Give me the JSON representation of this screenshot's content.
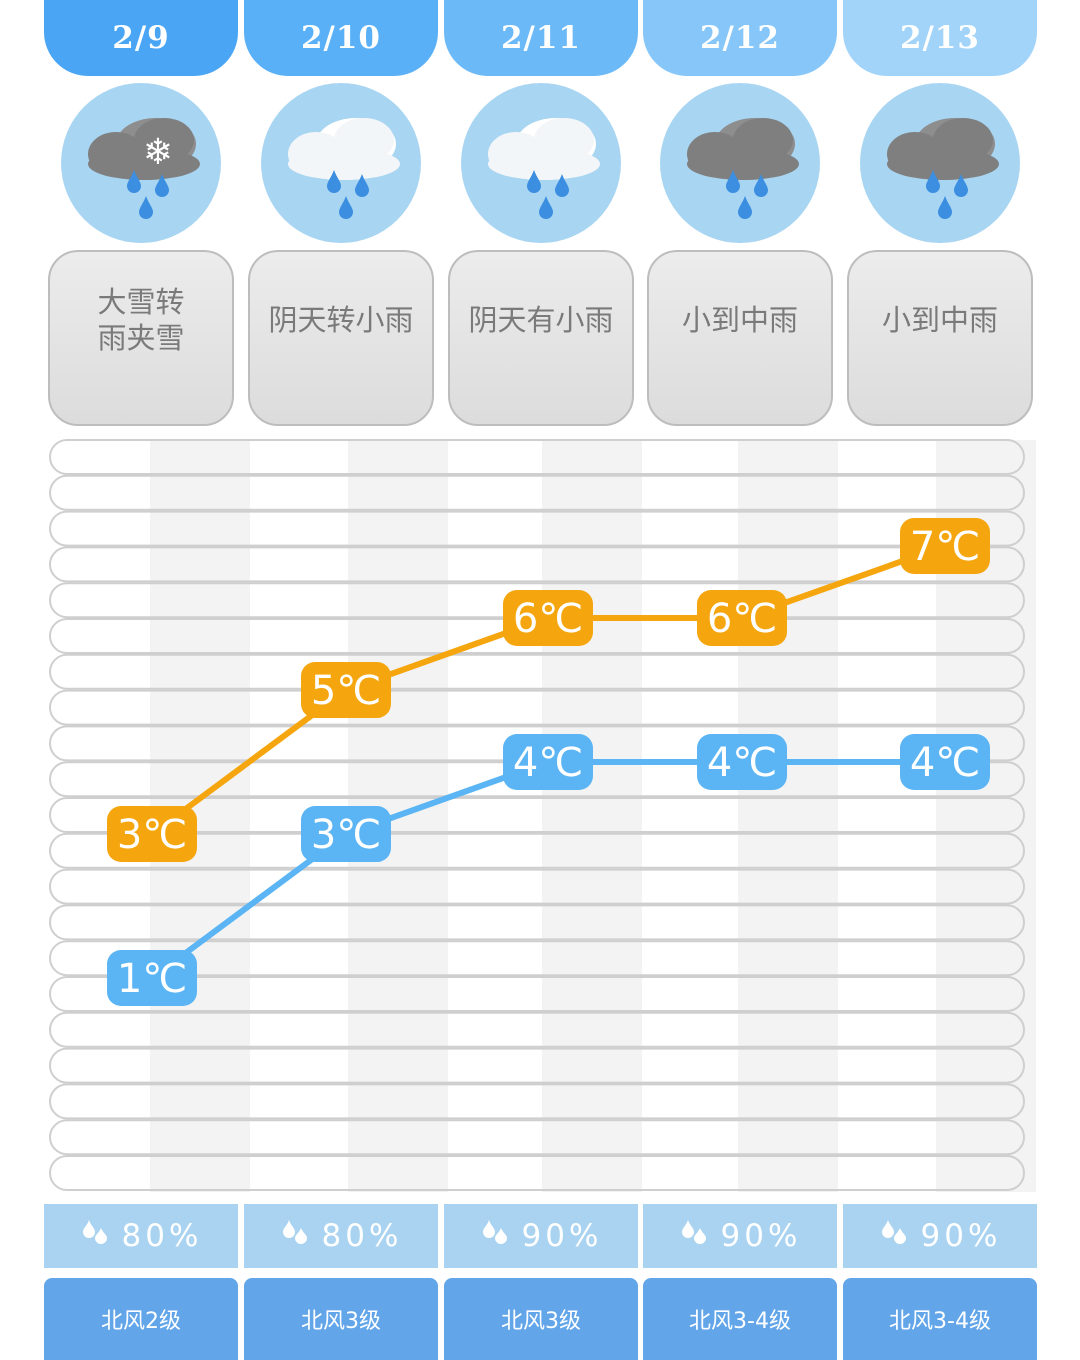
{
  "days": [
    {
      "date": "2/9",
      "condition": [
        "大雪转",
        "雨夹雪"
      ],
      "icon": "snow-rain-cloud-icon",
      "humidity": "80%",
      "wind": "北风2级",
      "date_color": "#4aa5f5"
    },
    {
      "date": "2/10",
      "condition": [
        "阴天转小雨"
      ],
      "icon": "white-cloud-rain-icon",
      "humidity": "80%",
      "wind": "北风3级",
      "date_color": "#5ab0f6"
    },
    {
      "date": "2/11",
      "condition": [
        "阴天有小雨"
      ],
      "icon": "white-cloud-rain-icon",
      "humidity": "90%",
      "wind": "北风3级",
      "date_color": "#6cb9f7"
    },
    {
      "date": "2/12",
      "condition": [
        "小到中雨"
      ],
      "icon": "dark-cloud-rain-icon",
      "humidity": "90%",
      "wind": "北风3-4级",
      "date_color": "#86c6f8"
    },
    {
      "date": "2/13",
      "condition": [
        "小到中雨"
      ],
      "icon": "dark-cloud-rain-icon",
      "humidity": "90%",
      "wind": "北风3-4级",
      "date_color": "#a2d4f9"
    }
  ],
  "chart_data": {
    "type": "line",
    "categories": [
      "2/9",
      "2/10",
      "2/11",
      "2/12",
      "2/13"
    ],
    "series": [
      {
        "values": [
          3,
          5,
          6,
          6,
          7
        ],
        "labels": [
          "3℃",
          "5℃",
          "6℃",
          "6℃",
          "7℃"
        ],
        "color": "#f5a60f"
      },
      {
        "values": [
          1,
          3,
          4,
          4,
          4
        ],
        "labels": [
          "1℃",
          "3℃",
          "4℃",
          "4℃",
          "4℃"
        ],
        "color": "#5bb5f5"
      }
    ],
    "unit": "℃"
  },
  "colors": {
    "date": "#4aa5f5",
    "icon_bg": "#a8d5f2",
    "condition_bg": "#e4e4e4",
    "humidity_bg": "#a9d3f0",
    "wind_bg": "#62a6e9",
    "high": "#f5a60f",
    "low": "#5bb5f5"
  }
}
